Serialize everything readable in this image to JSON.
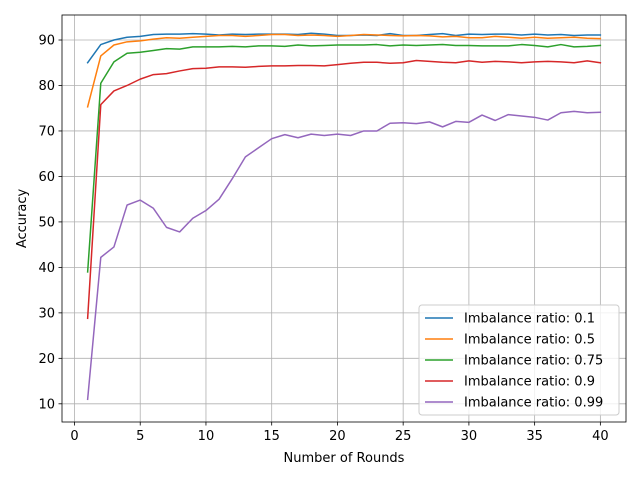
{
  "chart_data": {
    "type": "line",
    "title": "",
    "xlabel": "Number of Rounds",
    "ylabel": "Accuracy",
    "xlim": [
      -0.95,
      41.95
    ],
    "ylim": [
      6.0,
      95.5
    ],
    "xticks": [
      0,
      5,
      10,
      15,
      20,
      25,
      30,
      35,
      40
    ],
    "yticks": [
      10,
      20,
      30,
      40,
      50,
      60,
      70,
      80,
      90
    ],
    "grid": true,
    "legend_position": "lower-right",
    "x": [
      1,
      2,
      3,
      4,
      5,
      6,
      7,
      8,
      9,
      10,
      11,
      12,
      13,
      14,
      15,
      16,
      17,
      18,
      19,
      20,
      21,
      22,
      23,
      24,
      25,
      26,
      27,
      28,
      29,
      30,
      31,
      32,
      33,
      34,
      35,
      36,
      37,
      38,
      39,
      40
    ],
    "series": [
      {
        "name": "Imbalance ratio: 0.1",
        "color": "#1f77b4",
        "values": [
          85.0,
          89.0,
          90.0,
          90.6,
          90.8,
          91.2,
          91.3,
          91.3,
          91.4,
          91.3,
          91.1,
          91.3,
          91.2,
          91.3,
          91.3,
          91.3,
          91.2,
          91.5,
          91.3,
          91.0,
          91.0,
          91.1,
          91.0,
          91.4,
          91.0,
          91.0,
          91.2,
          91.4,
          91.0,
          91.3,
          91.2,
          91.3,
          91.3,
          91.1,
          91.3,
          91.1,
          91.2,
          91.0,
          91.1,
          91.1
        ]
      },
      {
        "name": "Imbalance ratio: 0.5",
        "color": "#ff7f0e",
        "values": [
          75.3,
          86.5,
          88.9,
          89.6,
          89.8,
          90.2,
          90.5,
          90.4,
          90.6,
          90.8,
          91.0,
          91.0,
          90.8,
          91.0,
          91.2,
          91.2,
          91.0,
          91.1,
          91.0,
          90.8,
          91.0,
          91.2,
          91.1,
          91.0,
          90.9,
          91.0,
          90.9,
          90.7,
          90.8,
          90.5,
          90.5,
          90.8,
          90.6,
          90.4,
          90.6,
          90.4,
          90.5,
          90.6,
          90.4,
          90.3
        ]
      },
      {
        "name": "Imbalance ratio: 0.75",
        "color": "#2ca02c",
        "values": [
          39.0,
          80.5,
          85.2,
          87.1,
          87.3,
          87.7,
          88.1,
          88.0,
          88.5,
          88.5,
          88.5,
          88.6,
          88.5,
          88.7,
          88.7,
          88.6,
          88.9,
          88.7,
          88.8,
          88.9,
          88.9,
          88.9,
          89.0,
          88.7,
          88.9,
          88.8,
          88.9,
          89.0,
          88.8,
          88.8,
          88.7,
          88.7,
          88.7,
          89.0,
          88.8,
          88.5,
          89.0,
          88.5,
          88.6,
          88.8
        ]
      },
      {
        "name": "Imbalance ratio: 0.9",
        "color": "#d62728",
        "values": [
          28.8,
          75.8,
          78.8,
          80.0,
          81.4,
          82.4,
          82.6,
          83.2,
          83.7,
          83.8,
          84.1,
          84.1,
          84.0,
          84.2,
          84.3,
          84.3,
          84.4,
          84.4,
          84.3,
          84.6,
          84.9,
          85.1,
          85.1,
          84.9,
          85.0,
          85.5,
          85.3,
          85.1,
          85.0,
          85.4,
          85.1,
          85.3,
          85.2,
          85.0,
          85.2,
          85.3,
          85.2,
          85.0,
          85.4,
          85.0
        ]
      },
      {
        "name": "Imbalance ratio: 0.99",
        "color": "#9467bd",
        "values": [
          11.0,
          42.2,
          44.5,
          53.7,
          54.8,
          53.0,
          48.8,
          47.8,
          50.8,
          52.5,
          55.0,
          59.5,
          64.3,
          66.3,
          68.3,
          69.2,
          68.5,
          69.3,
          69.0,
          69.3,
          69.0,
          70.0,
          70.0,
          71.7,
          71.8,
          71.6,
          72.0,
          70.9,
          72.1,
          71.9,
          73.5,
          72.3,
          73.6,
          73.3,
          73.0,
          72.4,
          74.0,
          74.3,
          74.0,
          74.1
        ]
      }
    ]
  }
}
